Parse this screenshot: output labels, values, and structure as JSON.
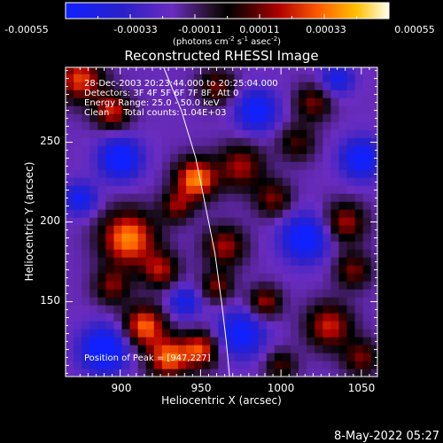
{
  "colorbar": {
    "ticks": [
      "-0.00055",
      "-0.00033",
      "-0.00011",
      "0.00011",
      "0.00033",
      "0.00055"
    ],
    "units_prefix": "(photons cm",
    "units_sup1": "-2",
    "units_mid1": " s",
    "units_sup2": "-1",
    "units_mid2": " asec",
    "units_sup3": "-2",
    "units_suffix": ")",
    "range": [
      -0.00055,
      0.00055
    ]
  },
  "chart_data": {
    "type": "heatmap",
    "title": "Reconstructed RHESSI Image",
    "xlabel": "Heliocentric X (arcsec)",
    "ylabel": "Heliocentric Y (arcsec)",
    "xlim": [
      866,
      1060
    ],
    "ylim": [
      103,
      297
    ],
    "x_ticks": [
      900,
      950,
      1000,
      1050
    ],
    "y_ticks": [
      150,
      200,
      250
    ],
    "x_tick_labels": [
      "900",
      "950",
      "1000",
      "1050"
    ],
    "y_tick_labels": [
      "150",
      "200",
      "250"
    ],
    "annotations": [
      "28-Dec-2003 20:23:44.000 to 20:25:04.000",
      "Detectors: 3F 4F 5F 6F 7F 8F, Att 0",
      "Energy Range: 25.0 - 50.0 keV",
      "Clean     Total counts: 1.04E+03"
    ],
    "peak_label": "Position of Peak = [947,227]",
    "peak": [
      947,
      227
    ],
    "limb_curve": [
      [
        927,
        297
      ],
      [
        938,
        270
      ],
      [
        947,
        240
      ],
      [
        953,
        210
      ],
      [
        959,
        180
      ],
      [
        963,
        150
      ],
      [
        966,
        125
      ],
      [
        968,
        103
      ]
    ],
    "blobs": [
      {
        "x": 875,
        "y": 290,
        "v": 0.00045,
        "s": 10
      },
      {
        "x": 895,
        "y": 270,
        "v": 0.0004,
        "s": 8
      },
      {
        "x": 905,
        "y": 190,
        "v": 0.00055,
        "s": 12
      },
      {
        "x": 895,
        "y": 160,
        "v": 0.0003,
        "s": 8
      },
      {
        "x": 915,
        "y": 135,
        "v": 0.0005,
        "s": 9
      },
      {
        "x": 930,
        "y": 115,
        "v": 0.0005,
        "s": 9
      },
      {
        "x": 950,
        "y": 120,
        "v": 0.00045,
        "s": 8
      },
      {
        "x": 947,
        "y": 227,
        "v": 0.00055,
        "s": 9
      },
      {
        "x": 935,
        "y": 210,
        "v": 0.0003,
        "s": 7
      },
      {
        "x": 925,
        "y": 170,
        "v": 0.00035,
        "s": 8
      },
      {
        "x": 965,
        "y": 185,
        "v": 0.00035,
        "s": 9
      },
      {
        "x": 960,
        "y": 160,
        "v": 0.0003,
        "s": 7
      },
      {
        "x": 975,
        "y": 235,
        "v": 0.00035,
        "s": 10
      },
      {
        "x": 990,
        "y": 150,
        "v": 0.00035,
        "s": 7
      },
      {
        "x": 995,
        "y": 215,
        "v": 0.0003,
        "s": 8
      },
      {
        "x": 1010,
        "y": 250,
        "v": 0.00025,
        "s": 8
      },
      {
        "x": 1020,
        "y": 275,
        "v": 0.0003,
        "s": 8
      },
      {
        "x": 1040,
        "y": 200,
        "v": 0.00035,
        "s": 9
      },
      {
        "x": 1045,
        "y": 170,
        "v": 0.0003,
        "s": 8
      },
      {
        "x": 1030,
        "y": 135,
        "v": 0.0004,
        "s": 10
      },
      {
        "x": 1050,
        "y": 115,
        "v": 0.0003,
        "s": 8
      },
      {
        "x": 960,
        "y": 285,
        "v": 0.0003,
        "s": 8
      },
      {
        "x": 1000,
        "y": 110,
        "v": 0.00025,
        "s": 7
      },
      {
        "x": 900,
        "y": 240,
        "v": -0.00045,
        "s": 9
      },
      {
        "x": 890,
        "y": 120,
        "v": -0.0005,
        "s": 10
      },
      {
        "x": 975,
        "y": 130,
        "v": -0.0004,
        "s": 10
      },
      {
        "x": 1015,
        "y": 190,
        "v": -0.00045,
        "s": 10
      },
      {
        "x": 985,
        "y": 270,
        "v": -0.0004,
        "s": 9
      },
      {
        "x": 1050,
        "y": 240,
        "v": -0.0004,
        "s": 9
      },
      {
        "x": 940,
        "y": 150,
        "v": -0.0003,
        "s": 7
      },
      {
        "x": 875,
        "y": 215,
        "v": -0.00035,
        "s": 7
      },
      {
        "x": 1035,
        "y": 290,
        "v": -0.0003,
        "s": 7
      }
    ]
  },
  "footer": {
    "date": "8-May-2022 05:27"
  }
}
